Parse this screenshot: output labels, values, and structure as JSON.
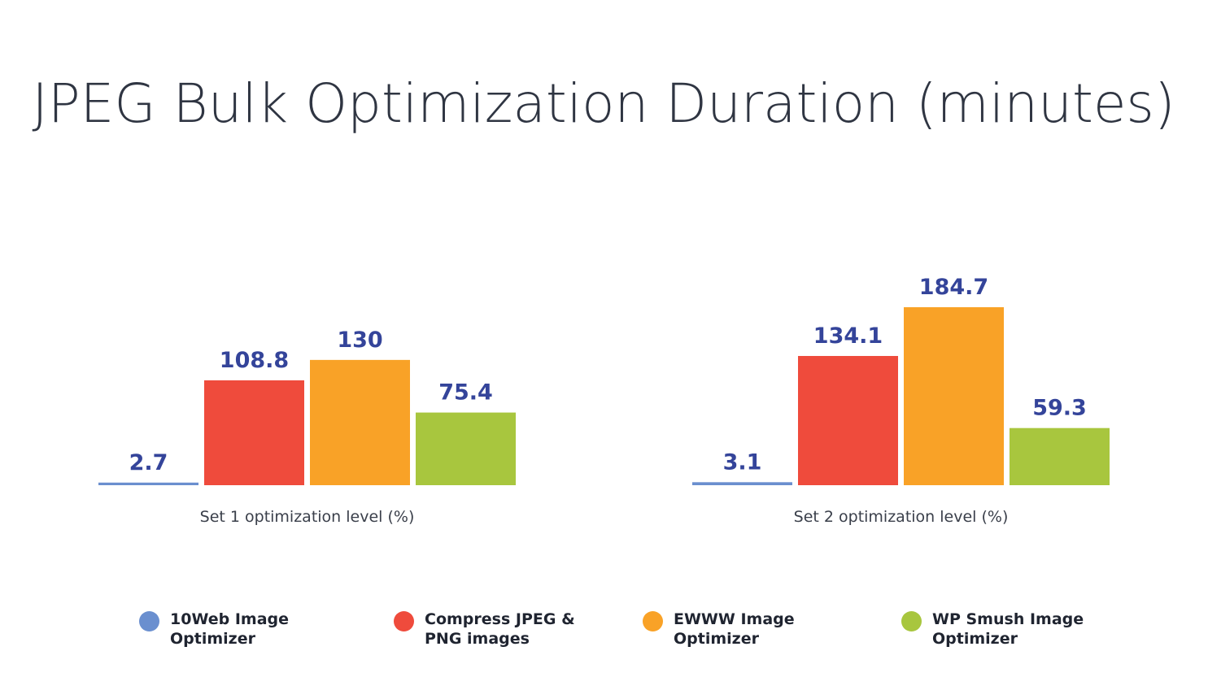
{
  "chart_data": {
    "type": "bar",
    "title": "JPEG Bulk Optimization Duration (minutes)",
    "categories": [
      "Set 1 optimization level (%)",
      "Set 2 optimization level (%)"
    ],
    "series": [
      {
        "name": "10Web Image Optimizer",
        "values": [
          2.7,
          3.1
        ],
        "value_labels": [
          "2.7",
          "3.1"
        ],
        "color": "#6a8fcf"
      },
      {
        "name": "Compress JPEG & PNG images",
        "values": [
          108.8,
          134.1
        ],
        "value_labels": [
          "108.8",
          "134.1"
        ],
        "color": "#ef4b3c"
      },
      {
        "name": "EWWW Image Optimizer",
        "values": [
          130,
          184.7
        ],
        "value_labels": [
          "130",
          "184.7"
        ],
        "color": "#f9a227"
      },
      {
        "name": "WP Smush Image Optimizer",
        "values": [
          75.4,
          59.3
        ],
        "value_labels": [
          "75.4",
          "59.3"
        ],
        "color": "#a8c63e"
      }
    ],
    "ylim": [
      0,
      184.7
    ],
    "grid": false,
    "legend": "bottom"
  }
}
